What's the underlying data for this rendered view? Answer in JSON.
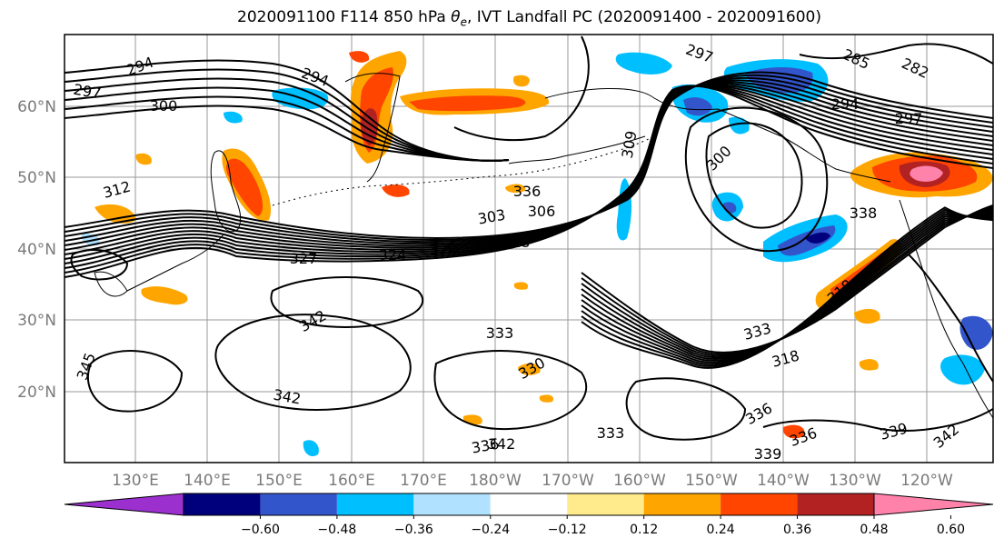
{
  "title": {
    "prefix": "2020091100 F114 850 hPa ",
    "symbol": "θ",
    "symbol_sub": "e",
    "suffix": ", IVT Landfall PC (2020091400 - 2020091600)"
  },
  "map": {
    "lat_labels": [
      "60°N",
      "50°N",
      "40°N",
      "30°N",
      "20°N"
    ],
    "lon_labels": [
      "130°E",
      "140°E",
      "150°E",
      "160°E",
      "170°E",
      "180°W",
      "170°W",
      "160°W",
      "150°W",
      "140°W",
      "130°W",
      "120°W"
    ],
    "contour_labels": [
      "294",
      "297",
      "300",
      "294",
      "297",
      "285",
      "282",
      "294",
      "297",
      "300",
      "309",
      "312",
      "303",
      "306",
      "318",
      "327",
      "324",
      "324",
      "342",
      "336",
      "333",
      "330",
      "342",
      "336",
      "333",
      "318",
      "333",
      "339",
      "338",
      "342",
      "339",
      "345",
      "318",
      "336",
      "336",
      "342"
    ]
  },
  "colorbar": {
    "colors": [
      "#9b30cf",
      "#00007d",
      "#3355cc",
      "#00bfff",
      "#b0e2ff",
      "#ffffff",
      "#ffea8c",
      "#ffa500",
      "#ff4500",
      "#b22222",
      "#ff82ab"
    ],
    "tick_labels": [
      "−0.60",
      "−0.48",
      "−0.36",
      "−0.24",
      "−0.12",
      "0.12",
      "0.24",
      "0.36",
      "0.48",
      "0.60"
    ]
  }
}
